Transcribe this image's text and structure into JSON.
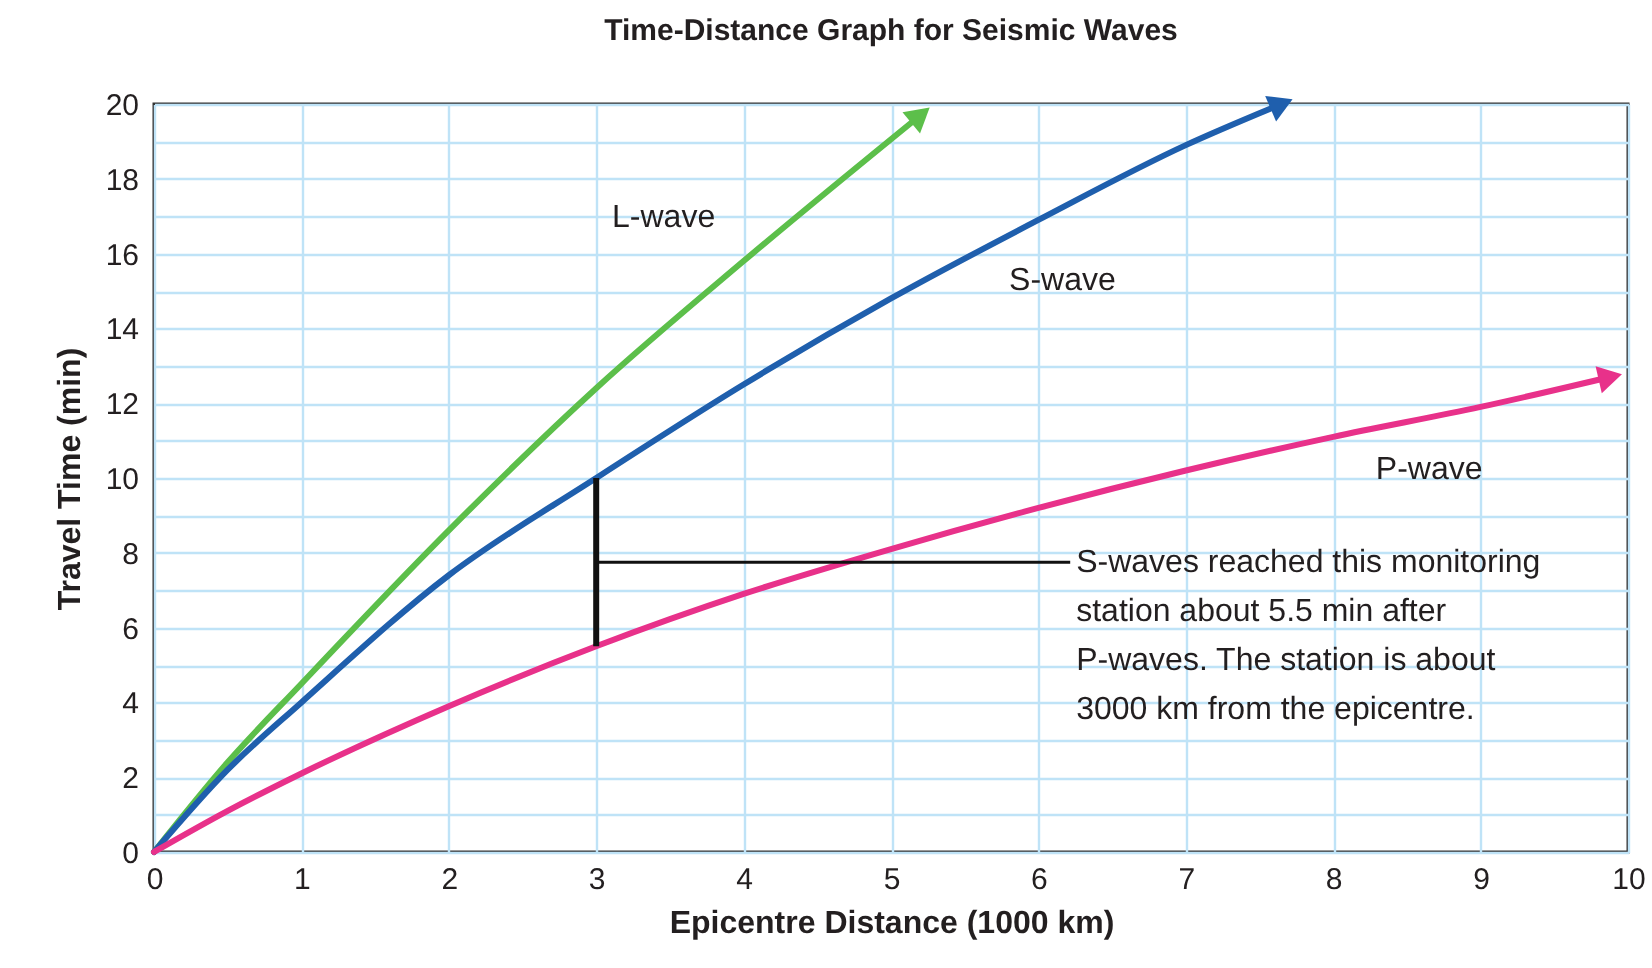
{
  "chart_data": {
    "type": "line",
    "title": "Time-Distance Graph for Seismic Waves",
    "xlabel": "Epicentre Distance (1000 km)",
    "ylabel": "Travel Time (min)",
    "series": [
      {
        "name": "L-wave",
        "color": "#5cbf4a",
        "x": [
          0,
          0.5,
          1,
          2,
          3,
          4,
          5.2
        ],
        "values": [
          0,
          2.4,
          4.5,
          8.6,
          12.4,
          15.8,
          19.7
        ]
      },
      {
        "name": "S-wave",
        "color": "#1f5fad",
        "x": [
          0,
          0.5,
          1,
          2,
          3,
          4,
          5,
          6,
          7,
          7.65
        ],
        "values": [
          0,
          2.2,
          4,
          7.4,
          10,
          12.5,
          14.8,
          16.9,
          18.9,
          20
        ]
      },
      {
        "name": "P-wave",
        "color": "#e8318a",
        "x": [
          0,
          0.5,
          1,
          2,
          3,
          4,
          5,
          6,
          7,
          8,
          9,
          9.88
        ],
        "values": [
          0,
          1.1,
          2.1,
          3.9,
          5.5,
          6.9,
          8.1,
          9.2,
          10.2,
          11.1,
          11.9,
          12.7
        ]
      }
    ],
    "xlim": [
      0,
      10
    ],
    "xticks": [
      0,
      1,
      2,
      3,
      4,
      5,
      6,
      7,
      8,
      9,
      10
    ],
    "ylim": [
      0,
      20
    ],
    "yticks": [
      0,
      {
        "value": 1,
        "label": null
      },
      2,
      {
        "value": 3,
        "label": null
      },
      4,
      {
        "value": 5,
        "label": null
      },
      6,
      {
        "value": 7,
        "label": null
      },
      8,
      {
        "value": 9,
        "label": null
      },
      10,
      {
        "value": 11,
        "label": null
      },
      12,
      {
        "value": 13,
        "label": null
      },
      14,
      {
        "value": 15,
        "label": null
      },
      16,
      {
        "value": 17,
        "label": null
      },
      18,
      {
        "value": 19,
        "label": null
      },
      20
    ],
    "grid": true,
    "legend": false,
    "line_style": "solid",
    "annotations": [
      "S-waves reached this monitoring station about 5.5 min after P-waves. The station is about 3000 km from the epicentre."
    ]
  }
}
